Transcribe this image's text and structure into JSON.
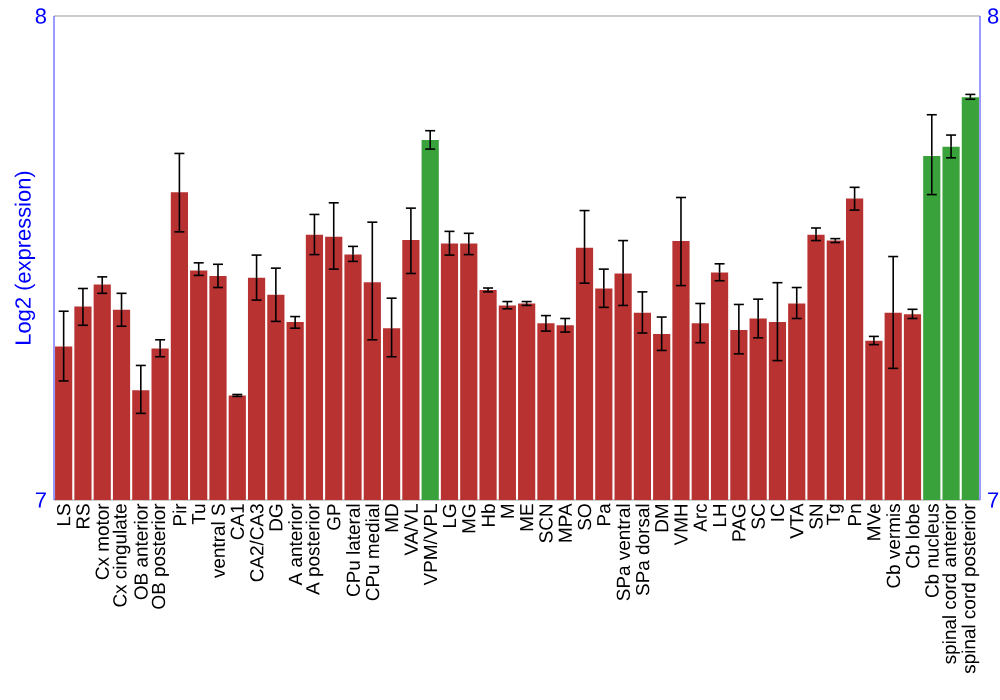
{
  "chart_data": {
    "type": "bar",
    "ylabel": "Log2 (expression)",
    "categories": [
      "LS",
      "RS",
      "Cx motor",
      "Cx cingulate",
      "OB anterior",
      "OB posterior",
      "Pir",
      "Tu",
      "ventral S",
      "CA1",
      "CA2/CA3",
      "DG",
      "A anterior",
      "A posterior",
      "GP",
      "CPu lateral",
      "CPu medial",
      "MD",
      "VA/VL",
      "VPM/VPL",
      "LG",
      "MG",
      "Hb",
      "M",
      "ME",
      "SCN",
      "MPA",
      "SO",
      "Pa",
      "SPa ventral",
      "SPa dorsal",
      "DM",
      "VMH",
      "Arc",
      "LH",
      "PAG",
      "SC",
      "IC",
      "VTA",
      "SN",
      "Tg",
      "Pn",
      "MVe",
      "Cb vermis",
      "Cb lobe",
      "Cb nucleus",
      "spinal cord anterior",
      "spinal cord posterior"
    ],
    "values": [
      7.317,
      7.4,
      7.445,
      7.393,
      7.227,
      7.313,
      7.636,
      7.474,
      7.463,
      7.216,
      7.459,
      7.424,
      7.368,
      7.548,
      7.544,
      7.507,
      7.45,
      7.355,
      7.537,
      7.744,
      7.53,
      7.53,
      7.434,
      7.402,
      7.406,
      7.365,
      7.361,
      7.521,
      7.437,
      7.468,
      7.387,
      7.343,
      7.535,
      7.365,
      7.47,
      7.351,
      7.375,
      7.368,
      7.406,
      7.548,
      7.536,
      7.623,
      7.329,
      7.387,
      7.384,
      7.711,
      7.73,
      7.832
    ],
    "errors": [
      [
        7.246,
        7.39
      ],
      [
        7.361,
        7.437
      ],
      [
        7.427,
        7.461
      ],
      [
        7.359,
        7.427
      ],
      [
        7.179,
        7.278
      ],
      [
        7.296,
        7.331
      ],
      [
        7.554,
        7.716
      ],
      [
        7.464,
        7.49
      ],
      [
        7.439,
        7.487
      ],
      [
        7.214,
        7.218
      ],
      [
        7.413,
        7.506
      ],
      [
        7.369,
        7.479
      ],
      [
        7.355,
        7.379
      ],
      [
        7.507,
        7.59
      ],
      [
        7.477,
        7.614
      ],
      [
        7.493,
        7.524
      ],
      [
        7.331,
        7.574
      ],
      [
        7.296,
        7.417
      ],
      [
        7.468,
        7.603
      ],
      [
        7.725,
        7.763
      ],
      [
        7.506,
        7.555
      ],
      [
        7.507,
        7.551
      ],
      [
        7.43,
        7.438
      ],
      [
        7.395,
        7.41
      ],
      [
        7.402,
        7.41
      ],
      [
        7.349,
        7.381
      ],
      [
        7.347,
        7.375
      ],
      [
        7.448,
        7.598
      ],
      [
        7.398,
        7.477
      ],
      [
        7.402,
        7.536
      ],
      [
        7.345,
        7.43
      ],
      [
        7.309,
        7.378
      ],
      [
        7.443,
        7.625
      ],
      [
        7.325,
        7.406
      ],
      [
        7.453,
        7.488
      ],
      [
        7.302,
        7.404
      ],
      [
        7.335,
        7.415
      ],
      [
        7.288,
        7.449
      ],
      [
        7.375,
        7.439
      ],
      [
        7.536,
        7.562
      ],
      [
        7.532,
        7.54
      ],
      [
        7.599,
        7.646
      ],
      [
        7.321,
        7.338
      ],
      [
        7.272,
        7.503
      ],
      [
        7.375,
        7.394
      ],
      [
        7.631,
        7.796
      ],
      [
        7.707,
        7.754
      ],
      [
        7.828,
        7.838
      ]
    ],
    "colors": [
      "#b83232",
      "#b83232",
      "#b83232",
      "#b83232",
      "#b83232",
      "#b83232",
      "#b83232",
      "#b83232",
      "#b83232",
      "#b83232",
      "#b83232",
      "#b83232",
      "#b83232",
      "#b83232",
      "#b83232",
      "#b83232",
      "#b83232",
      "#b83232",
      "#b83232",
      "#3aa23a",
      "#b83232",
      "#b83232",
      "#b83232",
      "#b83232",
      "#b83232",
      "#b83232",
      "#b83232",
      "#b83232",
      "#b83232",
      "#b83232",
      "#b83232",
      "#b83232",
      "#b83232",
      "#b83232",
      "#b83232",
      "#b83232",
      "#b83232",
      "#b83232",
      "#b83232",
      "#b83232",
      "#b83232",
      "#b83232",
      "#b83232",
      "#b83232",
      "#b83232",
      "#3aa23a",
      "#3aa23a",
      "#3aa23a"
    ],
    "ylim": [
      7,
      8
    ],
    "yticks": [
      7,
      8
    ],
    "y2lim": [
      7,
      8
    ],
    "y2ticks": [
      7,
      8
    ]
  }
}
